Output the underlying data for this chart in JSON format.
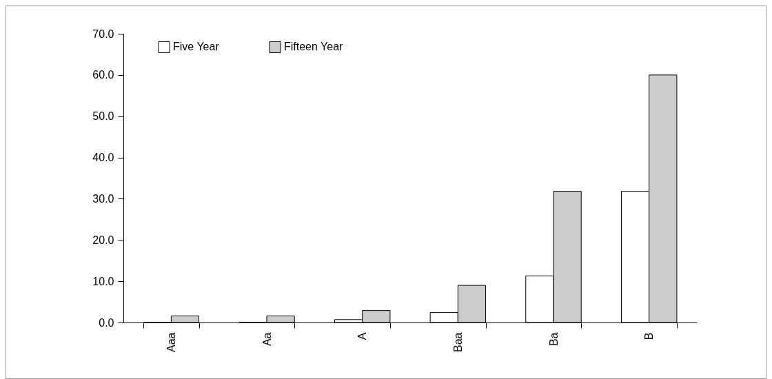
{
  "chart_data": {
    "type": "bar",
    "categories": [
      "Aaa",
      "Aa",
      "A",
      "Baa",
      "Ba",
      "B"
    ],
    "series": [
      {
        "name": "Five Year",
        "color": "#ffffff",
        "values": [
          0,
          0,
          0.7,
          2.4,
          11.3,
          31.8
        ]
      },
      {
        "name": "Fifteen Year",
        "color": "#cccccc",
        "values": [
          1.6,
          1.6,
          2.9,
          9.0,
          31.8,
          60.0
        ]
      }
    ],
    "ylim": [
      0,
      70
    ],
    "yticks": [
      {
        "value": 0,
        "label": "0.0"
      },
      {
        "value": 10,
        "label": "10.0"
      },
      {
        "value": 20,
        "label": "20.0"
      },
      {
        "value": 30,
        "label": "30.0"
      },
      {
        "value": 40,
        "label": "40.0"
      },
      {
        "value": 50,
        "label": "50.0"
      },
      {
        "value": 60,
        "label": "60.0"
      },
      {
        "value": 70,
        "label": "70.0"
      }
    ],
    "legend": "top left",
    "grid": false
  }
}
